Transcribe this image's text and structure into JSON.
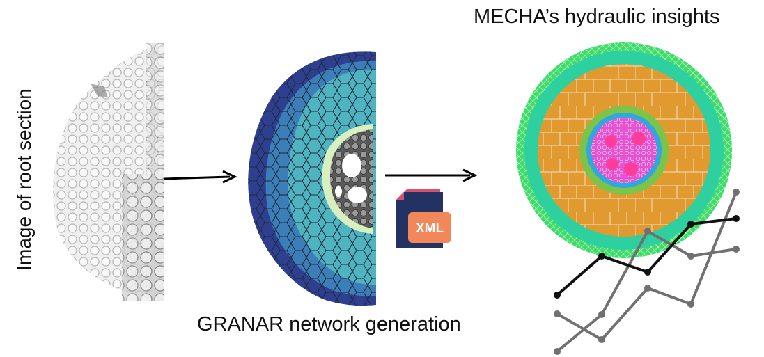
{
  "labels": {
    "image_label": "Image of root section",
    "granar_label": "GRANAR network generation",
    "mecha_label": "MECHA’s hydraulic insights"
  },
  "file_icon": {
    "text": "XML",
    "icon": "xml-file-icon",
    "colors": {
      "back": "#d9506a",
      "page": "#233163",
      "badge": "#f2875a"
    }
  },
  "colors": {
    "granar_epidermis": "#2f3f8f",
    "granar_outer_cortex": "#3c7fb8",
    "granar_cortex": "#4fb3c0",
    "granar_endodermis": "#d8efc0",
    "granar_stele": "#555555",
    "mecha_outer": "#3ddc6a",
    "mecha_exodermis": "#2fd0a0",
    "mecha_cortex": "#e09a30",
    "mecha_endodermis": "#7cc34a",
    "mecha_pericycle": "#2fa8e0",
    "mecha_stele": "#e64fd0",
    "mecha_xylem": "#ff3c9c",
    "plot_black": "#111111",
    "plot_grey": "#707070"
  }
}
